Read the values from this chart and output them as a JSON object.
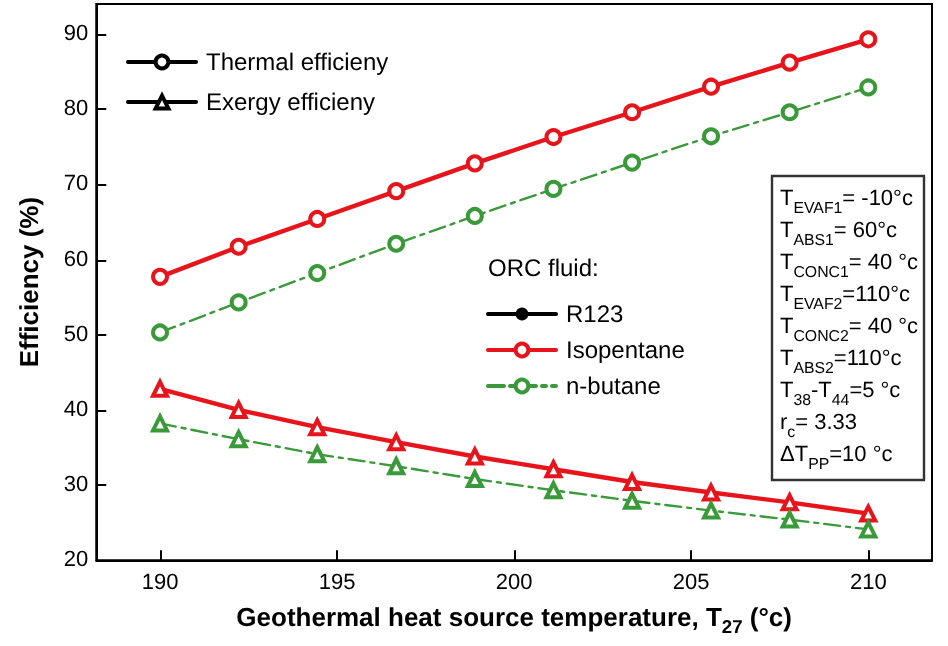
{
  "chart_data": {
    "type": "line",
    "xlabel": "Geothermal heat source temperature, T$_{27}$ (°c)",
    "ylabel": "Efficiency (%)",
    "legend_title": "ORC fluid:",
    "x": [
      190,
      192.22,
      194.44,
      196.67,
      198.89,
      201.11,
      203.33,
      205.56,
      207.78,
      210
    ],
    "xlim": [
      188.2,
      211.8
    ],
    "xticks": [
      190,
      195,
      200,
      205,
      210
    ],
    "ylim": [
      20,
      94
    ],
    "yticks": [
      20,
      30,
      40,
      50,
      60,
      70,
      80,
      90
    ],
    "grid": false,
    "legend": "top left",
    "line_style": "solid",
    "series": [
      {
        "name": "Thermal efficieny",
        "color": "#000000",
        "marker": "circle",
        "values": [
          null,
          null,
          null,
          null,
          null,
          null,
          null,
          null,
          null,
          null
        ]
      },
      {
        "name": "Exergy efficieny",
        "color": "#000000",
        "marker": "triangle",
        "values": [
          null,
          null,
          null,
          null,
          null,
          null,
          null,
          null,
          null,
          null
        ]
      },
      {
        "name": "R123",
        "color": "#000000",
        "marker": "none",
        "values": [
          null,
          null,
          null,
          null,
          null,
          null,
          null,
          null,
          null,
          null
        ]
      },
      {
        "name": "Isopentane",
        "color": "#e8141b",
        "marker": "circle",
        "values": [
          57.7,
          61.7,
          65.4,
          69.1,
          72.8,
          76.3,
          79.6,
          83.0,
          86.2,
          89.3
        ]
      },
      {
        "name": "n-butane",
        "color": "#3a9a3a",
        "marker": "circle",
        "line_style": "dashed",
        "values": [
          50.3,
          54.3,
          58.2,
          62.1,
          65.8,
          69.4,
          72.9,
          76.4,
          79.6,
          82.9
        ]
      },
      {
        "color": "#e8141b",
        "marker": "triangle",
        "values": [
          42.8,
          40.0,
          37.7,
          35.7,
          33.8,
          32.1,
          30.4,
          29.0,
          27.7,
          26.2
        ]
      },
      {
        "color": "#3a9a3a",
        "marker": "triangle",
        "line_style": "dashed",
        "values": [
          38.2,
          36.1,
          34.1,
          32.5,
          30.8,
          29.3,
          27.9,
          26.6,
          25.4,
          24.1
        ]
      }
    ],
    "annotations": [
      "T$_{EVAF1}$= -10°c",
      "T$_{ABS1}$= 60°c",
      "T$_{CONC1}$= 40 °c",
      "T$_{EVAF2}$=110°c",
      "T$_{CONC2}$= 40 °c",
      "T$_{ABS2}$=110°c",
      "T$_{38}$-T$_{44}$=5 °c",
      "r$_{c}$= 3.33",
      "ΔT$_{PP}$=10 °c"
    ]
  }
}
